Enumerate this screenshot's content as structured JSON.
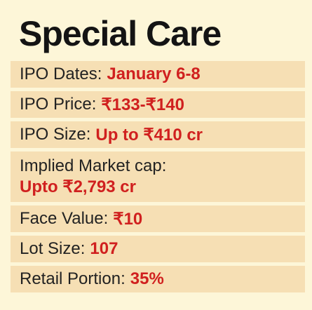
{
  "title": "Special Care",
  "rows": [
    {
      "label": "IPO Dates:",
      "value": "January 6-8"
    },
    {
      "label": "IPO Price:",
      "value": "₹133-₹140"
    },
    {
      "label": "IPO Size:",
      "value": "Up to ₹410 cr"
    },
    {
      "label": "Implied Market cap:",
      "value": "Upto ₹2,793 cr"
    },
    {
      "label": "Face Value:",
      "value": "₹10"
    },
    {
      "label": "Lot Size:",
      "value": "107"
    },
    {
      "label": "Retail Portion:",
      "value": "35%"
    }
  ],
  "colors": {
    "background": "#fdf6d8",
    "row_background": "#f6dfb4",
    "title": "#141414",
    "label": "#222222",
    "value": "#d0201f"
  }
}
